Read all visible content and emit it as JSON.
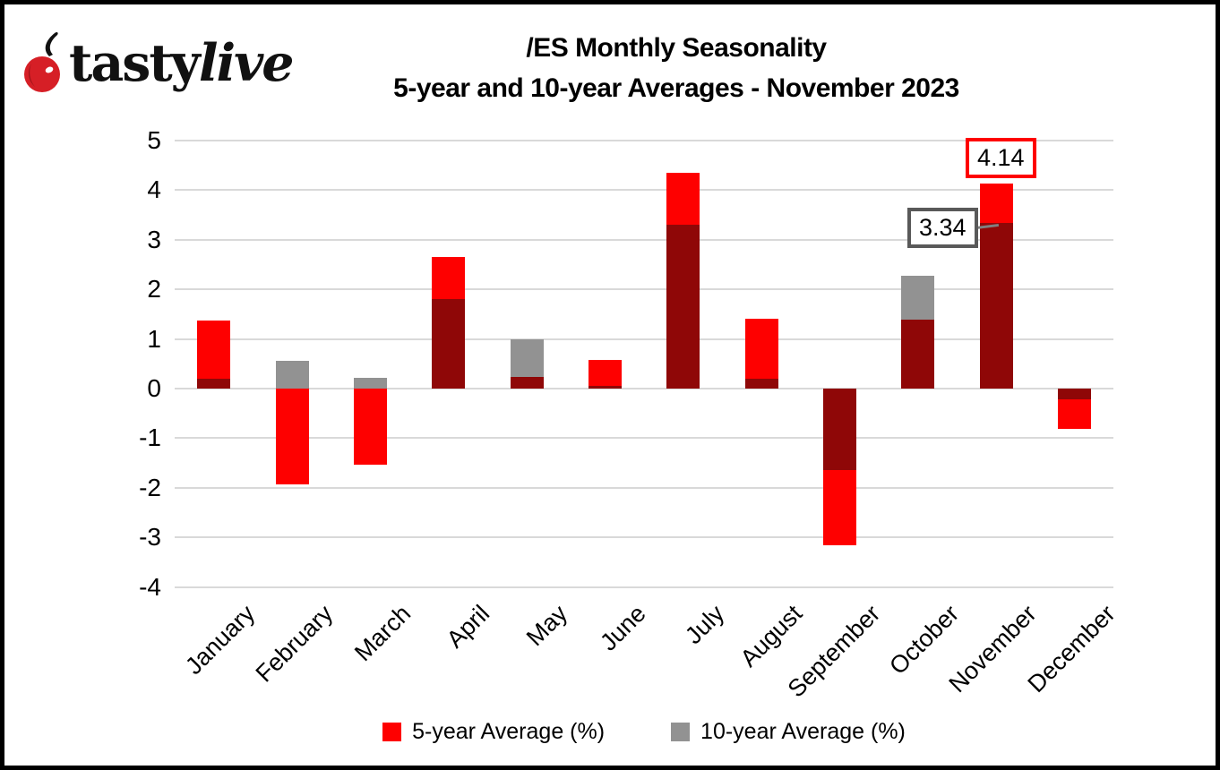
{
  "logo": {
    "brand_bold": "tasty",
    "brand_italic": "live"
  },
  "title": {
    "line1": "/ES Monthly Seasonality",
    "line2": "5-year and 10-year Averages - November 2023"
  },
  "colors": {
    "red": "#FE0000",
    "gray": "#929292",
    "dark_red": "#8F0707",
    "gridline": "#D9D9D9",
    "callout_red_border": "#FE0000",
    "callout_gray_border": "#595959",
    "leader_line": "#7F7F7F",
    "cherry": "#D61F26"
  },
  "axis": {
    "yticks": [
      5,
      4,
      3,
      2,
      1,
      0,
      -1,
      -2,
      -3,
      -4
    ]
  },
  "legend": [
    {
      "label": "5-year Average (%)"
    },
    {
      "label": "10-year Average (%)"
    }
  ],
  "callouts": [
    {
      "text": "3.34",
      "style": "gray"
    },
    {
      "text": "4.14",
      "style": "red"
    }
  ],
  "chart_data": {
    "type": "bar",
    "title": "/ES Monthly Seasonality 5-year and 10-year Averages - November 2023",
    "categories": [
      "January",
      "February",
      "March",
      "April",
      "May",
      "June",
      "July",
      "August",
      "September",
      "October",
      "November",
      "December"
    ],
    "series": [
      {
        "name": "5-year Average (%)",
        "color": "#FE0000",
        "values": [
          1.37,
          -1.93,
          -1.53,
          2.66,
          0.23,
          0.57,
          4.35,
          1.41,
          -3.15,
          1.39,
          4.14,
          -0.81
        ]
      },
      {
        "name": "10-year Average (%)",
        "color": "#929292",
        "values": [
          0.2,
          0.56,
          0.21,
          1.81,
          1.0,
          0.05,
          3.31,
          0.2,
          -1.65,
          2.27,
          3.34,
          -0.22
        ]
      }
    ],
    "overlap_color": "#8F0707",
    "ylim": [
      -4,
      5
    ],
    "grid": true,
    "legend_position": "bottom",
    "annotations": [
      {
        "month": "November",
        "series": "5-year Average (%)",
        "value": 4.14
      },
      {
        "month": "November",
        "series": "10-year Average (%)",
        "value": 3.34
      }
    ]
  }
}
